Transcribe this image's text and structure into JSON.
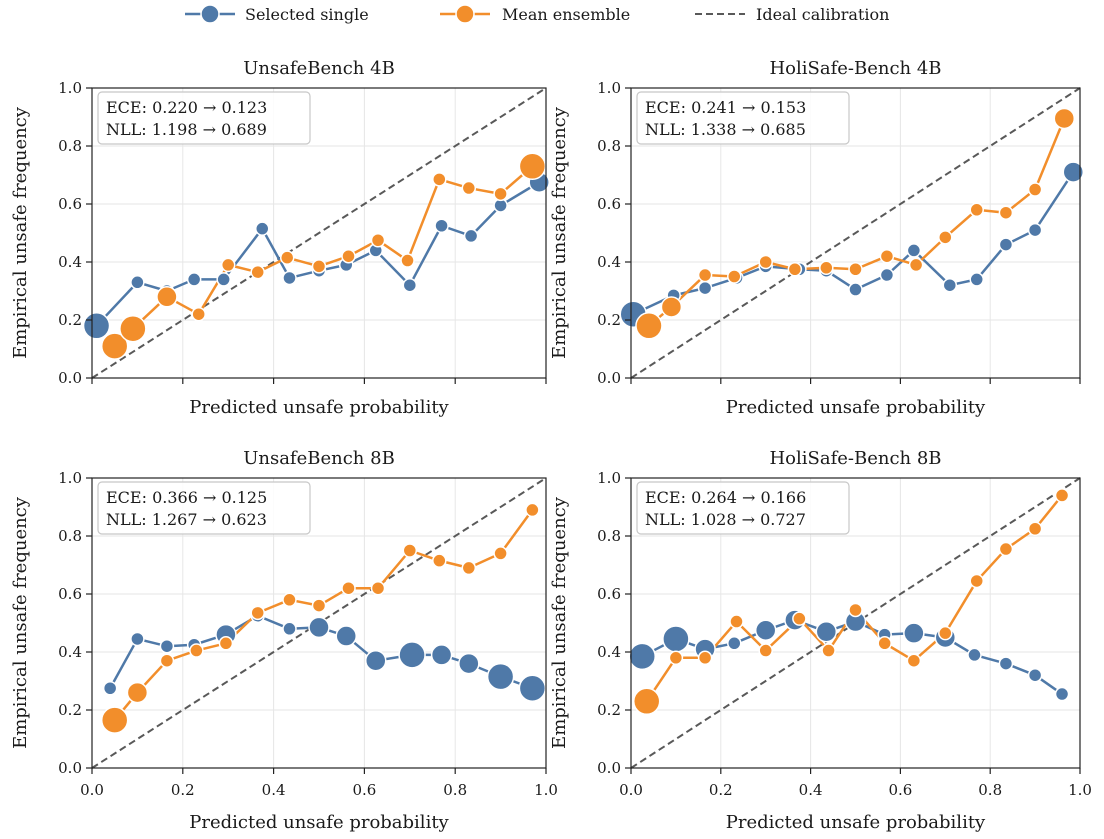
{
  "legend": {
    "selected_label": "Selected single",
    "mean_label": "Mean ensemble",
    "ideal_label": "Ideal calibration"
  },
  "colors": {
    "selected": "#4f79a8",
    "mean": "#f28e2b",
    "ideal": "#595959",
    "grid": "#e6e6e6"
  },
  "chart_data": [
    {
      "type": "line",
      "title": "UnsafeBench 4B",
      "xlabel": "Predicted unsafe probability",
      "ylabel": "Empirical unsafe frequency",
      "xlim": [
        0,
        1
      ],
      "ylim": [
        0,
        1
      ],
      "xticks": [
        "0.0",
        "0.2",
        "0.4",
        "0.6",
        "0.8",
        "1.0"
      ],
      "yticks": [
        "0.0",
        "0.2",
        "0.4",
        "0.6",
        "0.8",
        "1.0"
      ],
      "show_x_tick_labels": false,
      "grid": true,
      "metrics": [
        "ECE: 0.220 → 0.123",
        "NLL: 1.198 → 0.689"
      ],
      "series": [
        {
          "name": "Selected single",
          "points": [
            [
              0.01,
              0.18,
              3
            ],
            [
              0.1,
              0.33,
              1
            ],
            [
              0.165,
              0.3,
              1
            ],
            [
              0.225,
              0.34,
              1
            ],
            [
              0.29,
              0.34,
              1
            ],
            [
              0.375,
              0.515,
              1
            ],
            [
              0.435,
              0.345,
              1
            ],
            [
              0.5,
              0.37,
              1
            ],
            [
              0.56,
              0.39,
              1
            ],
            [
              0.625,
              0.44,
              1
            ],
            [
              0.7,
              0.32,
              1
            ],
            [
              0.77,
              0.525,
              1
            ],
            [
              0.835,
              0.49,
              1
            ],
            [
              0.9,
              0.595,
              1
            ],
            [
              0.985,
              0.675,
              2
            ]
          ]
        },
        {
          "name": "Mean ensemble",
          "points": [
            [
              0.05,
              0.11,
              3
            ],
            [
              0.09,
              0.17,
              3
            ],
            [
              0.165,
              0.28,
              2
            ],
            [
              0.235,
              0.22,
              1
            ],
            [
              0.3,
              0.39,
              1
            ],
            [
              0.365,
              0.365,
              1
            ],
            [
              0.43,
              0.415,
              1
            ],
            [
              0.5,
              0.385,
              1
            ],
            [
              0.565,
              0.42,
              1
            ],
            [
              0.63,
              0.475,
              1
            ],
            [
              0.695,
              0.405,
              1
            ],
            [
              0.765,
              0.685,
              1
            ],
            [
              0.83,
              0.655,
              1
            ],
            [
              0.9,
              0.635,
              1
            ],
            [
              0.97,
              0.73,
              3
            ]
          ]
        }
      ]
    },
    {
      "type": "line",
      "title": "HoliSafe-Bench 4B",
      "xlabel": "Predicted unsafe probability",
      "ylabel": "Empirical unsafe frequency",
      "xlim": [
        0,
        1
      ],
      "ylim": [
        0,
        1
      ],
      "xticks": [
        "0.0",
        "0.2",
        "0.4",
        "0.6",
        "0.8",
        "1.0"
      ],
      "yticks": [
        "0.0",
        "0.2",
        "0.4",
        "0.6",
        "0.8",
        "1.0"
      ],
      "show_x_tick_labels": false,
      "grid": true,
      "metrics": [
        "ECE: 0.241 → 0.153",
        "NLL: 1.338 → 0.685"
      ],
      "series": [
        {
          "name": "Selected single",
          "points": [
            [
              0.005,
              0.22,
              3
            ],
            [
              0.095,
              0.285,
              1
            ],
            [
              0.165,
              0.31,
              1
            ],
            [
              0.235,
              0.345,
              1
            ],
            [
              0.3,
              0.385,
              1
            ],
            [
              0.375,
              0.375,
              1
            ],
            [
              0.435,
              0.37,
              1
            ],
            [
              0.5,
              0.305,
              1
            ],
            [
              0.57,
              0.355,
              1
            ],
            [
              0.63,
              0.44,
              1
            ],
            [
              0.71,
              0.32,
              1
            ],
            [
              0.77,
              0.34,
              1
            ],
            [
              0.835,
              0.46,
              1
            ],
            [
              0.9,
              0.51,
              1
            ],
            [
              0.985,
              0.71,
              2
            ]
          ]
        },
        {
          "name": "Mean ensemble",
          "points": [
            [
              0.04,
              0.18,
              3
            ],
            [
              0.09,
              0.245,
              2
            ],
            [
              0.165,
              0.355,
              1
            ],
            [
              0.23,
              0.35,
              1
            ],
            [
              0.3,
              0.4,
              1
            ],
            [
              0.365,
              0.375,
              1
            ],
            [
              0.435,
              0.38,
              1
            ],
            [
              0.5,
              0.375,
              1
            ],
            [
              0.57,
              0.42,
              1
            ],
            [
              0.635,
              0.39,
              1
            ],
            [
              0.7,
              0.485,
              1
            ],
            [
              0.77,
              0.58,
              1
            ],
            [
              0.835,
              0.57,
              1
            ],
            [
              0.9,
              0.65,
              1
            ],
            [
              0.965,
              0.895,
              2
            ]
          ]
        }
      ]
    },
    {
      "type": "line",
      "title": "UnsafeBench 8B",
      "xlabel": "Predicted unsafe probability",
      "ylabel": "Empirical unsafe frequency",
      "xlim": [
        0,
        1
      ],
      "ylim": [
        0,
        1
      ],
      "xticks": [
        "0.0",
        "0.2",
        "0.4",
        "0.6",
        "0.8",
        "1.0"
      ],
      "yticks": [
        "0.0",
        "0.2",
        "0.4",
        "0.6",
        "0.8",
        "1.0"
      ],
      "show_x_tick_labels": true,
      "grid": true,
      "metrics": [
        "ECE: 0.366 → 0.125",
        "NLL: 1.267 → 0.623"
      ],
      "series": [
        {
          "name": "Selected single",
          "points": [
            [
              0.04,
              0.275,
              1
            ],
            [
              0.1,
              0.445,
              1
            ],
            [
              0.165,
              0.42,
              1
            ],
            [
              0.225,
              0.425,
              1
            ],
            [
              0.295,
              0.46,
              2
            ],
            [
              0.365,
              0.525,
              1
            ],
            [
              0.435,
              0.48,
              1
            ],
            [
              0.5,
              0.485,
              2
            ],
            [
              0.56,
              0.455,
              2
            ],
            [
              0.625,
              0.37,
              2
            ],
            [
              0.705,
              0.39,
              3
            ],
            [
              0.77,
              0.39,
              2
            ],
            [
              0.83,
              0.36,
              2
            ],
            [
              0.9,
              0.315,
              3
            ],
            [
              0.97,
              0.275,
              3
            ]
          ]
        },
        {
          "name": "Mean ensemble",
          "points": [
            [
              0.05,
              0.165,
              3
            ],
            [
              0.1,
              0.26,
              2
            ],
            [
              0.165,
              0.37,
              1
            ],
            [
              0.23,
              0.405,
              1
            ],
            [
              0.295,
              0.43,
              1
            ],
            [
              0.365,
              0.535,
              1
            ],
            [
              0.435,
              0.58,
              1
            ],
            [
              0.5,
              0.56,
              1
            ],
            [
              0.565,
              0.62,
              1
            ],
            [
              0.63,
              0.62,
              1
            ],
            [
              0.7,
              0.75,
              1
            ],
            [
              0.765,
              0.715,
              1
            ],
            [
              0.83,
              0.69,
              1
            ],
            [
              0.9,
              0.74,
              1
            ],
            [
              0.97,
              0.89,
              1
            ]
          ]
        }
      ]
    },
    {
      "type": "line",
      "title": "HoliSafe-Bench 8B",
      "xlabel": "Predicted unsafe probability",
      "ylabel": "Empirical unsafe frequency",
      "xlim": [
        0,
        1
      ],
      "ylim": [
        0,
        1
      ],
      "xticks": [
        "0.0",
        "0.2",
        "0.4",
        "0.6",
        "0.8",
        "1.0"
      ],
      "yticks": [
        "0.0",
        "0.2",
        "0.4",
        "0.6",
        "0.8",
        "1.0"
      ],
      "show_x_tick_labels": true,
      "grid": true,
      "metrics": [
        "ECE: 0.264 → 0.166",
        "NLL: 1.028 → 0.727"
      ],
      "series": [
        {
          "name": "Selected single",
          "points": [
            [
              0.025,
              0.385,
              3
            ],
            [
              0.1,
              0.445,
              3
            ],
            [
              0.165,
              0.41,
              2
            ],
            [
              0.23,
              0.43,
              1
            ],
            [
              0.3,
              0.475,
              2
            ],
            [
              0.365,
              0.51,
              2
            ],
            [
              0.435,
              0.47,
              2
            ],
            [
              0.5,
              0.505,
              2
            ],
            [
              0.565,
              0.46,
              1
            ],
            [
              0.63,
              0.465,
              2
            ],
            [
              0.7,
              0.45,
              2
            ],
            [
              0.765,
              0.39,
              1
            ],
            [
              0.835,
              0.36,
              1
            ],
            [
              0.9,
              0.32,
              1
            ],
            [
              0.96,
              0.255,
              1
            ]
          ]
        },
        {
          "name": "Mean ensemble",
          "points": [
            [
              0.035,
              0.23,
              3
            ],
            [
              0.1,
              0.38,
              1
            ],
            [
              0.165,
              0.38,
              1
            ],
            [
              0.235,
              0.505,
              1
            ],
            [
              0.3,
              0.405,
              1
            ],
            [
              0.375,
              0.515,
              1
            ],
            [
              0.44,
              0.405,
              1
            ],
            [
              0.5,
              0.545,
              1
            ],
            [
              0.565,
              0.43,
              1
            ],
            [
              0.63,
              0.37,
              1
            ],
            [
              0.7,
              0.465,
              1
            ],
            [
              0.77,
              0.645,
              1
            ],
            [
              0.835,
              0.755,
              1
            ],
            [
              0.9,
              0.825,
              1
            ],
            [
              0.96,
              0.94,
              1
            ]
          ]
        }
      ]
    }
  ]
}
